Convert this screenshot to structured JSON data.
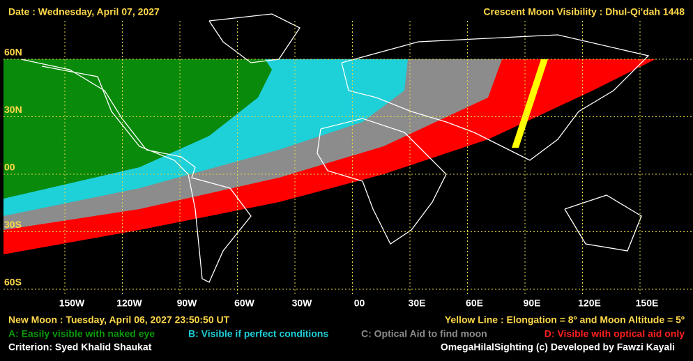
{
  "header": {
    "date": "Date : Wednesday, April 07, 2027",
    "title": "Crescent Moon Visibility : Dhul-Qi'dah  1448"
  },
  "map": {
    "lat_labels": [
      "60N",
      "30N",
      "00",
      "30S",
      "60S"
    ],
    "lon_labels": [
      "150W",
      "120W",
      "90W",
      "60W",
      "30W",
      "00",
      "30E",
      "60E",
      "90E",
      "120E",
      "150E"
    ]
  },
  "footer": {
    "new_moon": "New Moon : Tuesday, April 06, 2027  23:50:50  UT",
    "yellow_line": "Yellow Line : Elongation = 8º  and Moon Altitude = 5º",
    "legend": {
      "a": "A: Easily visible with naked eye",
      "b": "B: Visible if perfect conditions",
      "c": "C: Optical Aid to find moon",
      "d": "D: Visible with optical aid only"
    },
    "criterion": "Criterion: Syed Khalid Shaukat",
    "credit": "OmegaHilalSighting  (c)  Developed by Fawzi Kayali"
  }
}
